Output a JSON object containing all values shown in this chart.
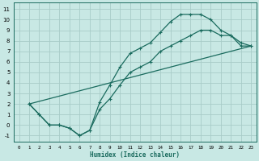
{
  "xlabel": "Humidex (Indice chaleur)",
  "bg_color": "#c8e8e4",
  "grid_color": "#a8ccc8",
  "line_color": "#1a6b5e",
  "xlim": [
    -0.5,
    23.5
  ],
  "ylim": [
    -1.6,
    11.6
  ],
  "xticks": [
    0,
    1,
    2,
    3,
    4,
    5,
    6,
    7,
    8,
    9,
    10,
    11,
    12,
    13,
    14,
    15,
    16,
    17,
    18,
    19,
    20,
    21,
    22,
    23
  ],
  "yticks": [
    -1,
    0,
    1,
    2,
    3,
    4,
    5,
    6,
    7,
    8,
    9,
    10,
    11
  ],
  "line1_x": [
    1,
    2,
    3,
    4,
    5,
    6,
    7,
    8,
    9,
    10,
    11,
    12,
    13,
    14,
    15,
    16,
    17,
    18,
    19,
    20,
    21,
    22,
    23
  ],
  "line1_y": [
    2.0,
    1.0,
    0.0,
    0.0,
    -0.3,
    -1.0,
    -0.5,
    2.2,
    3.8,
    5.5,
    6.8,
    7.3,
    7.8,
    8.8,
    9.8,
    10.5,
    10.5,
    10.5,
    10.0,
    9.0,
    8.5,
    7.8,
    7.5
  ],
  "line2_x": [
    1,
    2,
    3,
    4,
    5,
    6,
    7,
    8,
    9,
    10,
    11,
    12,
    13,
    14,
    15,
    16,
    17,
    18,
    19,
    20,
    21,
    22,
    23
  ],
  "line2_y": [
    2.0,
    1.0,
    0.0,
    0.0,
    -0.3,
    -1.0,
    -0.5,
    1.5,
    2.5,
    3.8,
    5.0,
    5.5,
    6.0,
    7.0,
    7.5,
    8.0,
    8.5,
    9.0,
    9.0,
    8.5,
    8.5,
    7.5,
    7.5
  ],
  "line3_x": [
    1,
    23
  ],
  "line3_y": [
    2.0,
    7.5
  ]
}
